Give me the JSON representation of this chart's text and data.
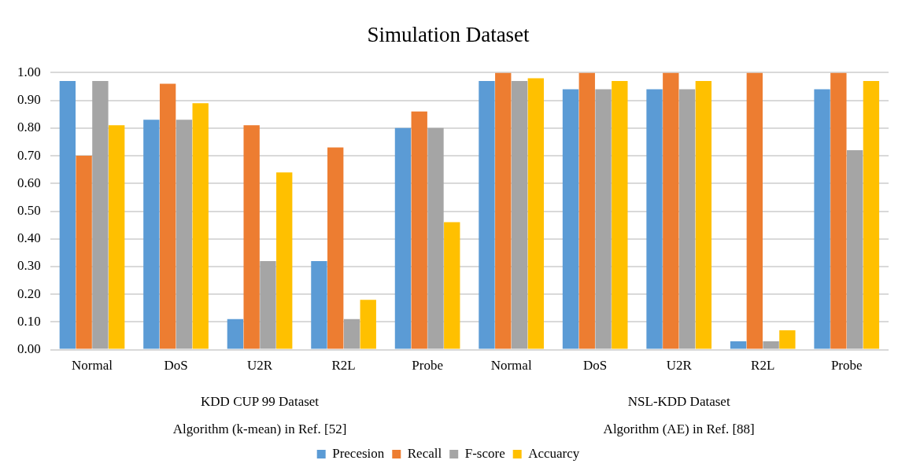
{
  "chart_data": {
    "type": "bar",
    "title": "Simulation Dataset",
    "categories": [
      "Normal",
      "DoS",
      "U2R",
      "R2L",
      "Probe",
      "Normal",
      "DoS",
      "U2R",
      "R2L",
      "Probe"
    ],
    "series": [
      {
        "name": "Precesion",
        "color": "#5b9bd5",
        "values": [
          0.97,
          0.83,
          0.11,
          0.32,
          0.8,
          0.97,
          0.94,
          0.94,
          0.03,
          0.94
        ]
      },
      {
        "name": "Recall",
        "color": "#ed7d31",
        "values": [
          0.7,
          0.96,
          0.81,
          0.73,
          0.86,
          1.0,
          1.0,
          1.0,
          1.0,
          1.0
        ]
      },
      {
        "name": "F-score",
        "color": "#a5a5a5",
        "values": [
          0.97,
          0.83,
          0.32,
          0.11,
          0.8,
          0.97,
          0.94,
          0.94,
          0.03,
          0.72
        ]
      },
      {
        "name": "Accuarcy",
        "color": "#ffc000",
        "values": [
          0.81,
          0.89,
          0.64,
          0.18,
          0.46,
          0.98,
          0.97,
          0.97,
          0.07,
          0.97
        ]
      }
    ],
    "annotations": [
      "KDD CUP 99 Dataset",
      "NSL-KDD Dataset",
      "Algorithm (k-mean) in Ref. [52]",
      "Algorithm (AE) in Ref. [88]"
    ],
    "ylim": [
      0,
      1
    ],
    "yticks": [
      {
        "value": 0,
        "label": "0.00"
      },
      {
        "value": 0.1,
        "label": "0.10"
      },
      {
        "value": 0.2,
        "label": "0.20"
      },
      {
        "value": 0.3,
        "label": "0.30"
      },
      {
        "value": 0.4,
        "label": "0.40"
      },
      {
        "value": 0.5,
        "label": "0.50"
      },
      {
        "value": 0.6,
        "label": "0.60"
      },
      {
        "value": 0.7,
        "label": "0.70"
      },
      {
        "value": 0.8,
        "label": "0.80"
      },
      {
        "value": 0.9,
        "label": "0.90"
      },
      {
        "value": 1,
        "label": "1.00"
      }
    ],
    "grid": "y",
    "legend": "bottom"
  }
}
